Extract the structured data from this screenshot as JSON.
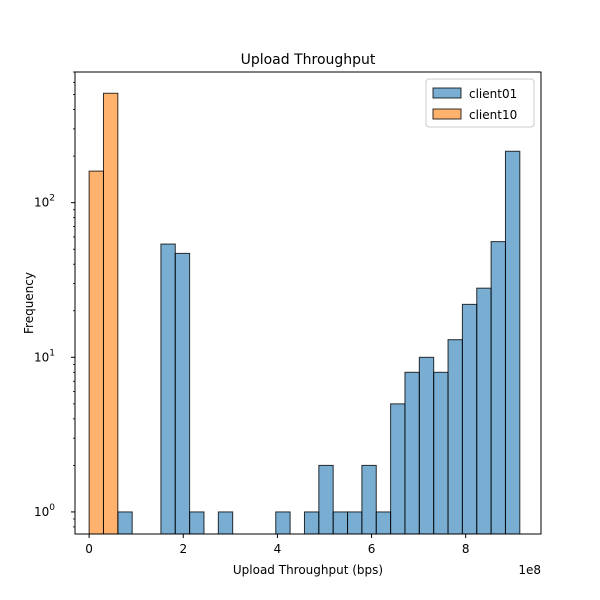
{
  "chart_data": {
    "type": "bar",
    "title": "Upload Throughput",
    "xlabel": "Upload Throughput (bps)",
    "ylabel": "Frequency",
    "x_offset_label": "1e8",
    "x_scale_factor": 100000000,
    "y_scale": "log",
    "xlim": [
      -30000000,
      960000000
    ],
    "ylim": [
      0.72,
      700
    ],
    "x_ticks": [
      0,
      200000000,
      400000000,
      600000000,
      800000000
    ],
    "x_tick_labels": [
      "0",
      "2",
      "4",
      "6",
      "8"
    ],
    "y_ticks": [
      1,
      10,
      100
    ],
    "legend": "top-right",
    "grid": false,
    "bin_width": 30500000,
    "series": [
      {
        "name": "client01",
        "color": "#1f77b4",
        "bins": [
          {
            "x0": 61000000,
            "count": 1
          },
          {
            "x0": 152500000,
            "count": 54
          },
          {
            "x0": 183000000,
            "count": 47
          },
          {
            "x0": 213500000,
            "count": 1
          },
          {
            "x0": 274500000,
            "count": 1
          },
          {
            "x0": 396500000,
            "count": 1
          },
          {
            "x0": 457500000,
            "count": 1
          },
          {
            "x0": 488000000,
            "count": 2
          },
          {
            "x0": 518500000,
            "count": 1
          },
          {
            "x0": 549000000,
            "count": 1
          },
          {
            "x0": 579500000,
            "count": 2
          },
          {
            "x0": 610000000,
            "count": 1
          },
          {
            "x0": 640500000,
            "count": 5
          },
          {
            "x0": 671000000,
            "count": 8
          },
          {
            "x0": 701500000,
            "count": 10
          },
          {
            "x0": 732000000,
            "count": 8
          },
          {
            "x0": 762500000,
            "count": 13
          },
          {
            "x0": 793000000,
            "count": 22
          },
          {
            "x0": 823500000,
            "count": 28
          },
          {
            "x0": 854000000,
            "count": 56
          },
          {
            "x0": 884500000,
            "count": 215
          }
        ]
      },
      {
        "name": "client10",
        "color": "#ff7f0e",
        "bins": [
          {
            "x0": 0,
            "count": 160
          },
          {
            "x0": 30500000,
            "count": 510
          }
        ]
      }
    ]
  }
}
